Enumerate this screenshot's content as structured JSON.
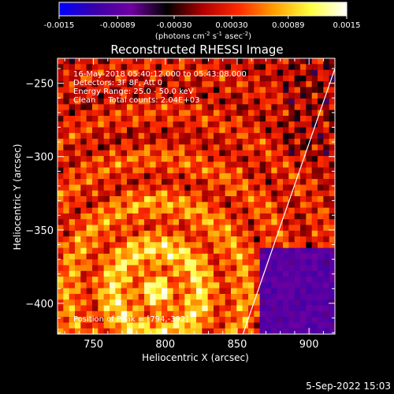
{
  "chart_data": {
    "type": "heatmap",
    "title": "Reconstructed RHESSI Image",
    "xlabel": "Heliocentric X (arcsec)",
    "ylabel": "Heliocentric Y (arcsec)",
    "xlim": [
      725,
      918
    ],
    "ylim": [
      -421,
      -233
    ],
    "xticks": [
      750,
      800,
      850,
      900
    ],
    "yticks": [
      -250,
      -300,
      -350,
      -400
    ],
    "colorbar": {
      "ticks": [
        "-0.0015",
        "-0.00089",
        "-0.00030",
        "0.00030",
        "0.00089",
        "0.0015"
      ],
      "units_parts": [
        "(photons cm",
        "-2",
        " s",
        "-1",
        " asec",
        "-2",
        ")"
      ],
      "range": [
        -0.0015,
        0.0015
      ],
      "stops": [
        "#0000ff",
        "#3a00a8",
        "#7000a0",
        "#000000",
        "#b00000",
        "#ff2a00",
        "#ffa000",
        "#ffff40",
        "#ffffff"
      ]
    },
    "annotations": [
      "16-May-2018 05:40:12.000 to 05:43:08.000",
      "Detectors: 3F 8F, Att 0",
      "Energy Range: 25.0 - 50.0 keV",
      "Clean     Total counts: 2.04E+03"
    ],
    "peak_label": "Position of Peak = [794,-392]",
    "peak": [
      794,
      -392
    ],
    "limb_line": [
      [
        854,
        -421
      ],
      [
        918,
        -240
      ]
    ]
  },
  "footer_date": "5-Sep-2022 15:03"
}
